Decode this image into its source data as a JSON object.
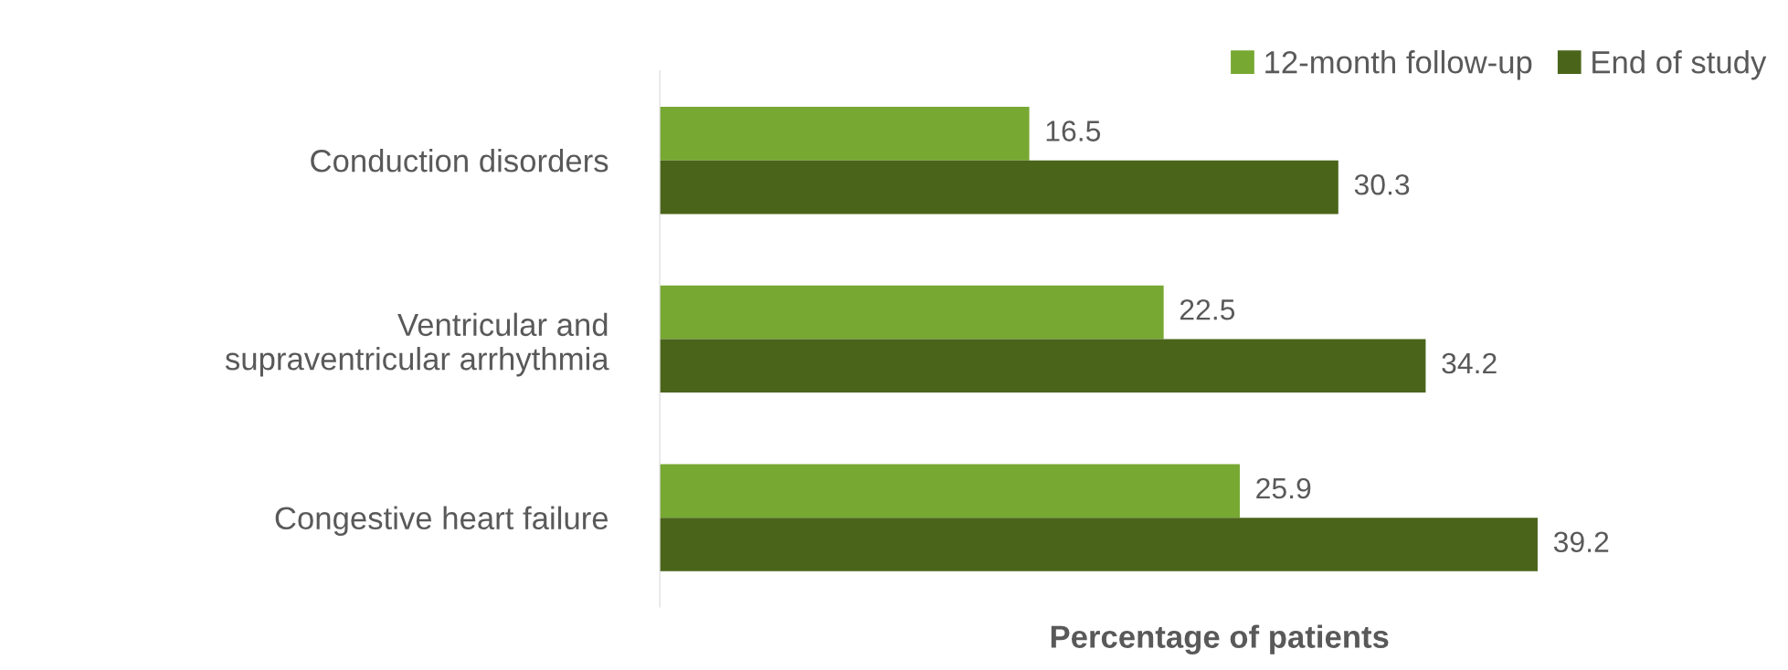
{
  "chart_data": {
    "type": "bar",
    "orientation": "horizontal",
    "xlabel": "Percentage of patients",
    "categories": [
      "Conduction disorders",
      "Ventricular and\nsupraventricular arrhythmia",
      "Congestive heart failure"
    ],
    "series": [
      {
        "name": "12-month follow-up",
        "color": "#77a832",
        "values": [
          16.5,
          22.5,
          25.9
        ]
      },
      {
        "name": "End of study",
        "color": "#4a651a",
        "values": [
          30.3,
          34.2,
          39.2
        ]
      }
    ],
    "data_labels": true,
    "legend": "top right",
    "grid": false
  }
}
